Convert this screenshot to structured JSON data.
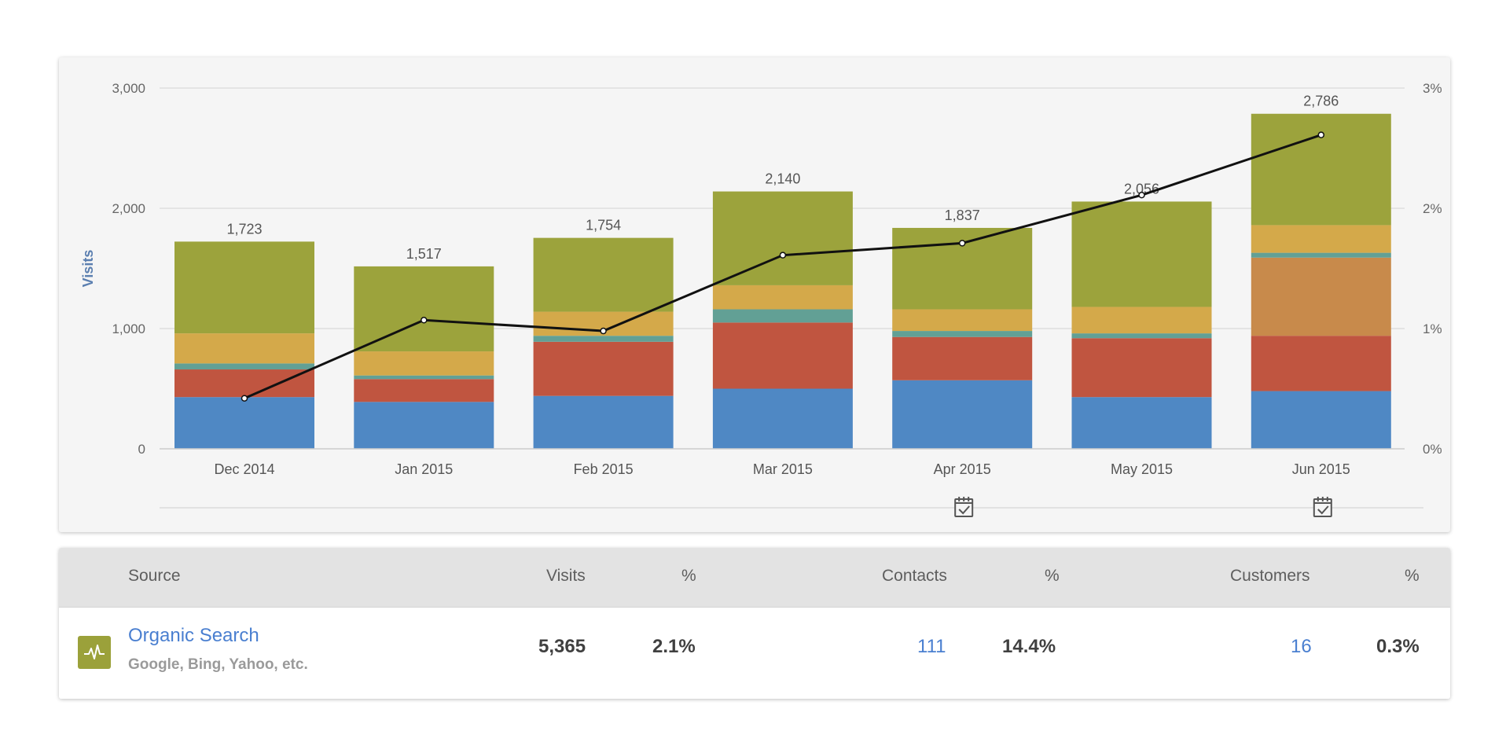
{
  "chart_data": {
    "type": "bar",
    "stacked": true,
    "categories": [
      "Dec 2014",
      "Jan 2015",
      "Feb 2015",
      "Mar 2015",
      "Apr 2015",
      "May 2015",
      "Jun 2015"
    ],
    "totals": [
      1723,
      1517,
      1754,
      2140,
      1837,
      2056,
      2786
    ],
    "total_labels": [
      "1,723",
      "1,517",
      "1,754",
      "2,140",
      "1,837",
      "2,056",
      "2,786"
    ],
    "series": [
      {
        "color": "#4f88c4",
        "values": [
          430,
          390,
          440,
          500,
          570,
          430,
          480
        ]
      },
      {
        "color": "#c05540",
        "values": [
          230,
          190,
          450,
          550,
          360,
          490,
          460
        ]
      },
      {
        "color": "#c88a4b",
        "values": [
          0,
          0,
          0,
          0,
          0,
          0,
          650
        ]
      },
      {
        "color": "#62a095",
        "values": [
          50,
          30,
          50,
          110,
          50,
          40,
          40
        ]
      },
      {
        "color": "#d4a94a",
        "values": [
          250,
          200,
          200,
          200,
          180,
          220,
          230
        ]
      },
      {
        "color": "#9ca33c",
        "values": [
          763,
          707,
          614,
          780,
          677,
          876,
          926
        ]
      }
    ],
    "line": {
      "axis": "right",
      "color": "#111111",
      "values": [
        0.42,
        1.07,
        0.98,
        1.61,
        1.71,
        2.11,
        2.61
      ]
    },
    "ylabel": "Visits",
    "ylim": [
      0,
      3000
    ],
    "y_ticks": [
      0,
      1000,
      2000,
      3000
    ],
    "y_tick_labels": [
      "0",
      "1,000",
      "2,000",
      "3,000"
    ],
    "y2lim": [
      0,
      3
    ],
    "y2_ticks": [
      0,
      1,
      2,
      3
    ],
    "y2_tick_labels": [
      "0%",
      "1%",
      "2%",
      "3%"
    ],
    "grid": true,
    "event_markers": [
      "Apr 2015",
      "Jun 2015"
    ]
  },
  "table": {
    "headers": {
      "source": "Source",
      "visits": "Visits",
      "visits_pct": "%",
      "contacts": "Contacts",
      "contacts_pct": "%",
      "customers": "Customers",
      "customers_pct": "%"
    },
    "row": {
      "icon": "activity-pulse-icon",
      "icon_color": "#9ba13a",
      "name": "Organic Search",
      "description": "Google, Bing, Yahoo, etc.",
      "visits": "5,365",
      "visits_pct": "2.1%",
      "contacts": "111",
      "contacts_pct": "14.4%",
      "customers": "16",
      "customers_pct": "0.3%"
    }
  }
}
